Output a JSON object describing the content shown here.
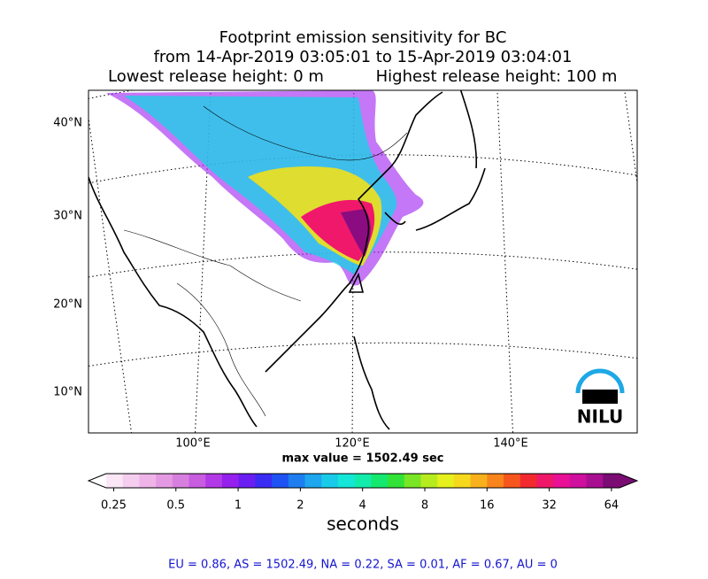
{
  "header": {
    "lines": [
      "Footprint emission sensitivity for BC",
      "from 14-Apr-2019 03:05:01 to 15-Apr-2019 03:04:01",
      "Lowest release height: 0 m",
      "Highest release height: 100 m"
    ]
  },
  "map": {
    "lat_labels": [
      "40°N",
      "30°N",
      "20°N",
      "10°N"
    ],
    "lon_labels": [
      "100°E",
      "120°E",
      "140°E"
    ],
    "max_value": "max value = 1502.49 sec",
    "logo": "NILU"
  },
  "colorbar": {
    "log_scale": true,
    "lim": [
      0.23,
      70
    ],
    "ticks": [
      0.25,
      0.5,
      1,
      2,
      4,
      8,
      16,
      32,
      64
    ],
    "label": "seconds",
    "colors": [
      "#fbe6f6",
      "#f5cdef",
      "#eeb4e8",
      "#e49ae2",
      "#d77fde",
      "#c85de0",
      "#b23ae6",
      "#9421ee",
      "#6a1ef2",
      "#3b2cf4",
      "#1f52f2",
      "#1e7ef0",
      "#1ea6ee",
      "#19cbe8",
      "#14e6d8",
      "#12ecaa",
      "#14e86e",
      "#32e236",
      "#7ae524",
      "#b6ec1e",
      "#e6f01c",
      "#f6d81c",
      "#f8b01c",
      "#f8841c",
      "#f6561e",
      "#f22a30",
      "#ef1868",
      "#e81094",
      "#cf0f9e",
      "#a80f90",
      "#7a0c74"
    ]
  },
  "footer": {
    "text": "EU = 0.86,  AS = 1502.49,  NA = 0.22,  SA = 0.01,  AF = 0.67,  AU = 0"
  }
}
